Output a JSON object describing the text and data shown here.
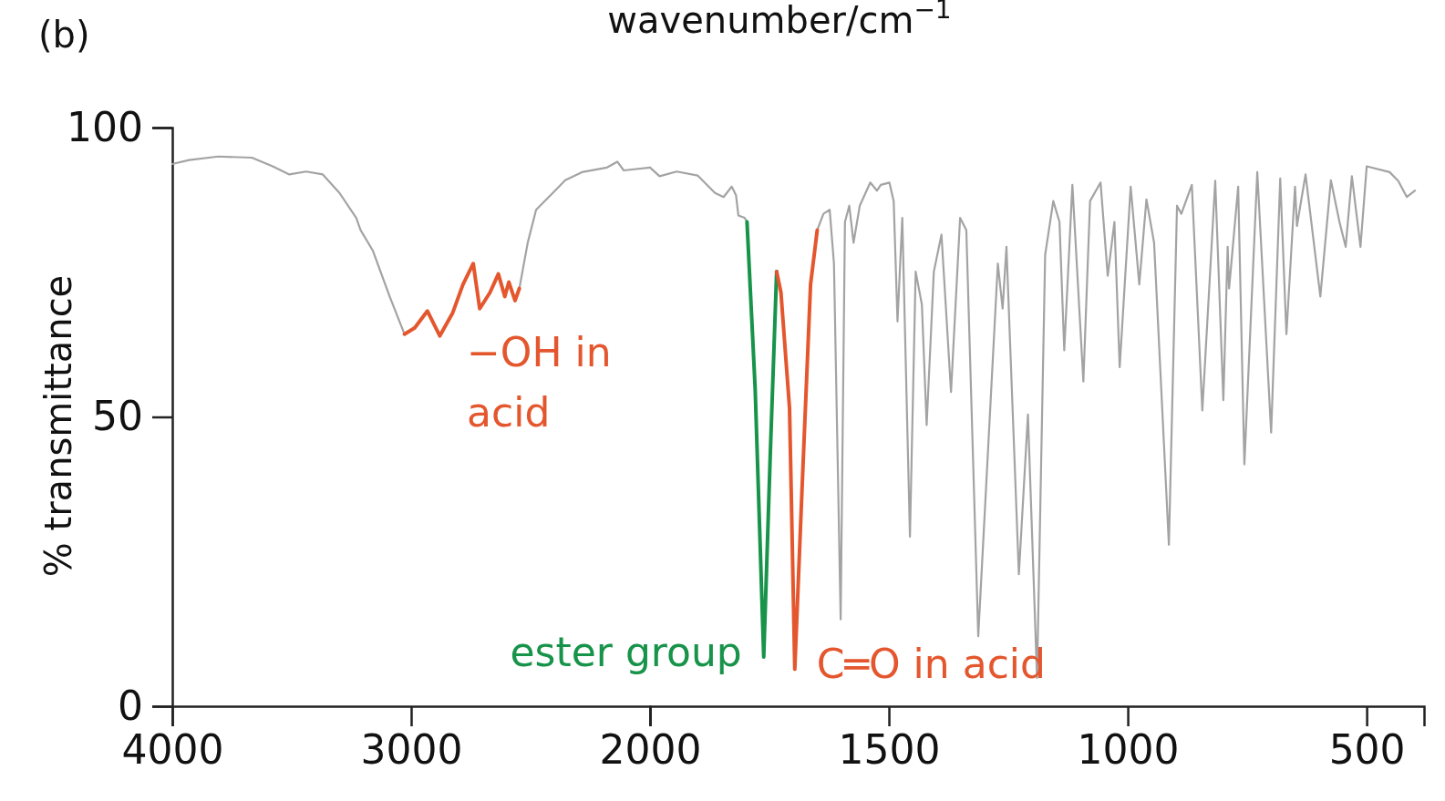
{
  "chart_data": [
    {
      "type": "line",
      "ylabel": "% transmittance",
      "xlim": [
        4000,
        2000
      ],
      "ylim": [
        0,
        100
      ],
      "xticks": [
        4000,
        3000
      ],
      "yticks": [
        0,
        50,
        100
      ],
      "grid": false,
      "marker": "none",
      "line_style": "solid",
      "series": [
        {
          "color": "#a3a3a3",
          "x": [
            4000,
            3930,
            3808,
            3667,
            3580,
            3510,
            3440,
            3370,
            3300,
            3230,
            3212,
            3160,
            3090,
            3028,
            2800,
            2547,
            2512,
            2477,
            2407,
            2355,
            2285,
            2180,
            2137,
            2110,
            2000
          ],
          "values": [
            93.7,
            94.4,
            95.0,
            94.8,
            93.3,
            91.9,
            92.4,
            91.9,
            88.7,
            84.4,
            82.3,
            78.7,
            70.8,
            64.3,
            null,
            72.2,
            80.1,
            85.8,
            88.7,
            90.9,
            92.3,
            93.1,
            94.1,
            92.6,
            93.1
          ]
        },
        {
          "color": "#e4572e",
          "x": [
            3028,
            2985,
            2932,
            2880,
            2827,
            2783,
            2740,
            2713,
            2670,
            2635,
            2608,
            2591,
            2565,
            2547
          ],
          "values": [
            64.3,
            65.4,
            68.3,
            64.0,
            67.9,
            72.9,
            76.5,
            68.7,
            71.5,
            74.7,
            70.8,
            73.3,
            70.1,
            72.2
          ]
        }
      ],
      "annotations": [
        "(b)",
        "−OH in acid"
      ]
    },
    {
      "type": "line",
      "xlabel": "wavenumber/cm$^{−1}$",
      "tick_labels": "x",
      "xlim": [
        2000,
        380
      ],
      "ylim": [
        0,
        100
      ],
      "xticks": [
        2000,
        1500,
        1000,
        500
      ],
      "grid": false,
      "marker": "none",
      "line_style": "solid",
      "series": [
        {
          "color": "#a3a3a3",
          "x": [
            2000,
            1980,
            1944,
            1900,
            1864,
            1846,
            1829,
            1820,
            1815,
            1802,
            1797,
            1720,
            1650,
            1637,
            1624,
            1615,
            1601,
            1592,
            1583,
            1574,
            1561,
            1539,
            1525,
            1517,
            1499,
            1490,
            1482,
            1472,
            1456,
            1444,
            1431,
            1421,
            1406,
            1390,
            1370,
            1351,
            1338,
            1313,
            1272,
            1262,
            1254,
            1228,
            1209,
            1190,
            1173,
            1156,
            1143,
            1133,
            1116,
            1093,
            1079,
            1057,
            1042,
            1028,
            1017,
            994,
            976,
            961,
            945,
            914,
            897,
            888,
            866,
            844,
            817,
            800,
            791,
            788,
            769,
            756,
            729,
            700,
            681,
            668,
            650,
            646,
            628,
            597,
            575,
            557,
            544,
            531,
            513,
            500,
            452,
            434,
            416,
            399
          ],
          "values": [
            93.1,
            91.6,
            92.4,
            91.7,
            88.7,
            88.0,
            89.8,
            88.3,
            84.8,
            84.4,
            83.7,
            null,
            82.3,
            85.1,
            85.8,
            76.5,
            15.0,
            83.7,
            86.5,
            80.1,
            86.5,
            90.5,
            89.1,
            90.1,
            90.5,
            87.3,
            66.5,
            84.4,
            29.3,
            75.1,
            69.4,
            48.6,
            75.1,
            81.5,
            54.3,
            84.4,
            82.3,
            12.1,
            76.5,
            68.7,
            79.4,
            22.8,
            50.4,
            4.9,
            78.0,
            87.3,
            83.7,
            61.5,
            90.1,
            56.1,
            87.3,
            90.5,
            74.4,
            83.7,
            58.6,
            89.8,
            72.9,
            87.6,
            80.1,
            27.9,
            86.5,
            85.1,
            90.1,
            51.1,
            90.8,
            52.9,
            79.4,
            72.2,
            89.8,
            41.8,
            92.3,
            47.3,
            91.2,
            64.3,
            89.8,
            83.0,
            91.9,
            70.8,
            90.9,
            83.7,
            79.4,
            91.6,
            79.4,
            93.3,
            92.3,
            90.8,
            88.0,
            89.1
          ]
        },
        {
          "color": "#17934a",
          "x": [
            1797,
            1780,
            1762,
            1748,
            1735
          ],
          "values": [
            83.7,
            55.0,
            8.5,
            44.3,
            75.1
          ]
        },
        {
          "color": "#e4572e",
          "x": [
            1735,
            1726,
            1708,
            1697,
            1682,
            1664,
            1650
          ],
          "values": [
            75.1,
            71.5,
            51.5,
            6.4,
            37.2,
            72.9,
            82.3
          ]
        }
      ],
      "annotations": [
        {
          "text": "ester group",
          "x": 1762,
          "y": 8.5
        },
        {
          "text": "C═O in acid",
          "x": 1697,
          "y": 6.4
        }
      ]
    }
  ]
}
